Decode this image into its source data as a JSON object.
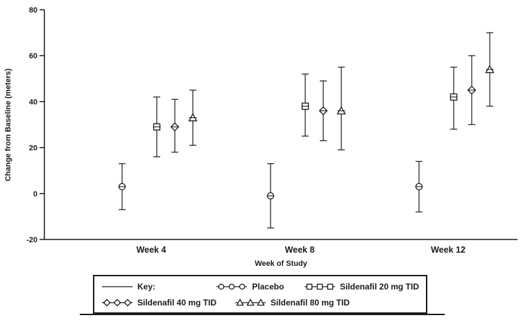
{
  "chart_data": {
    "type": "scatter",
    "error_bars": true,
    "title": "",
    "xlabel": "Week of Study",
    "ylabel": "Change from Baseline (meters)",
    "categories": [
      "Week 4",
      "Week 8",
      "Week 12"
    ],
    "ylim": [
      -20,
      80
    ],
    "yticks": [
      -20,
      0,
      20,
      40,
      60,
      80
    ],
    "grid": false,
    "legend": {
      "position": "bottom",
      "key_label": "Key:"
    },
    "series": [
      {
        "name": "Placebo",
        "marker": "circle",
        "values": [
          3,
          -1,
          3
        ],
        "lower": [
          -7,
          -15,
          -8
        ],
        "upper": [
          13,
          13,
          14
        ]
      },
      {
        "name": "Sildenafil 20 mg TID",
        "marker": "square",
        "values": [
          29,
          38,
          42
        ],
        "lower": [
          16,
          25,
          28
        ],
        "upper": [
          42,
          52,
          55
        ]
      },
      {
        "name": "Sildenafil 40 mg TID",
        "marker": "diamond",
        "values": [
          29,
          36,
          45
        ],
        "lower": [
          18,
          23,
          30
        ],
        "upper": [
          41,
          49,
          60
        ]
      },
      {
        "name": "Sildenafil 80 mg TID",
        "marker": "triangle",
        "values": [
          33,
          36,
          54
        ],
        "lower": [
          21,
          19,
          38
        ],
        "upper": [
          45,
          55,
          70
        ]
      }
    ]
  },
  "colors": {
    "stroke": "#1a1a1a",
    "background": "#ffffff"
  }
}
